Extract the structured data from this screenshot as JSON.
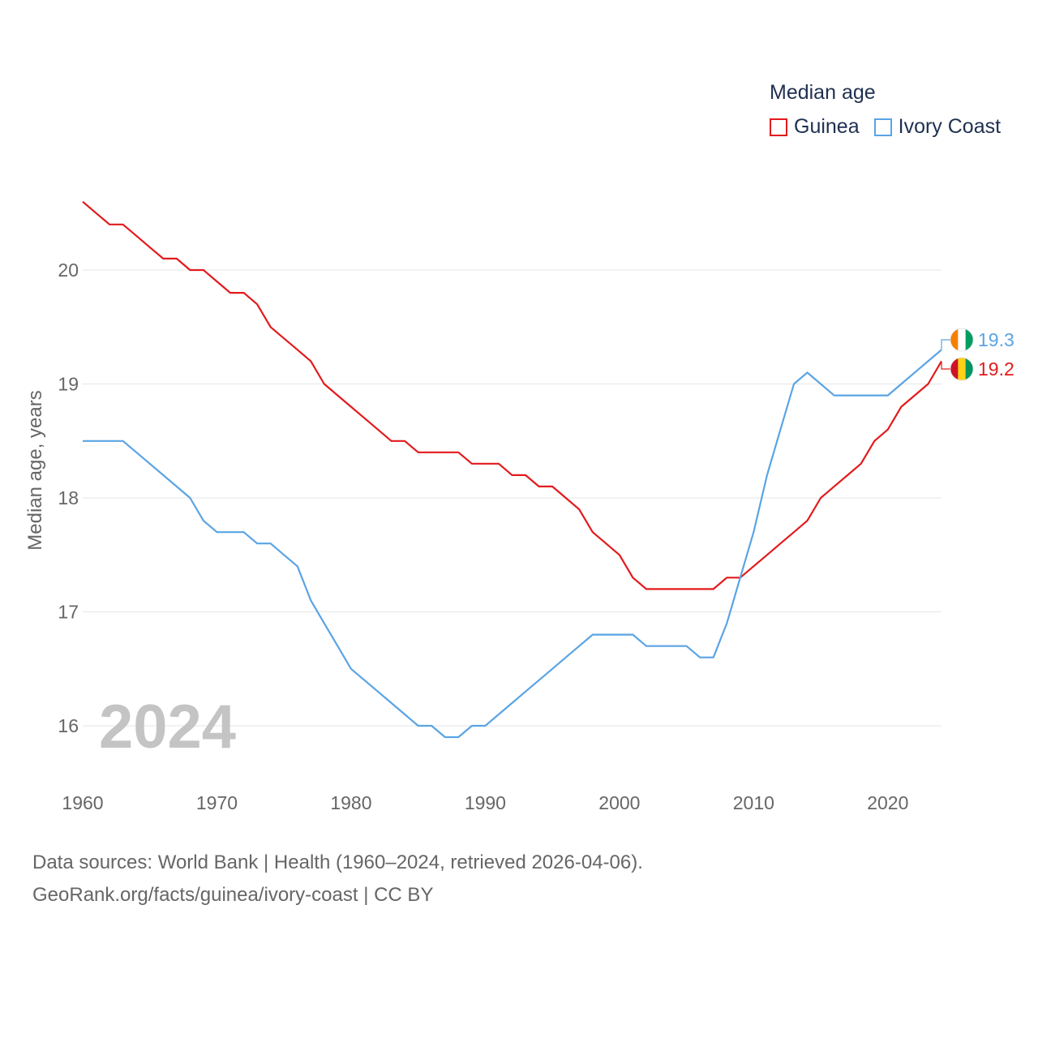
{
  "chart_data": {
    "type": "line",
    "legend_title": "Median age",
    "ylabel": "Median age, years",
    "xlabel": "",
    "xlim": [
      1960,
      2024
    ],
    "ylim": [
      15.6,
      20.8
    ],
    "x_ticks": [
      1960,
      1970,
      1980,
      1990,
      2000,
      2010,
      2020
    ],
    "y_ticks": [
      16,
      17,
      18,
      19,
      20
    ],
    "year_label": "2024",
    "x": [
      1960,
      1961,
      1962,
      1963,
      1964,
      1965,
      1966,
      1967,
      1968,
      1969,
      1970,
      1971,
      1972,
      1973,
      1974,
      1975,
      1976,
      1977,
      1978,
      1979,
      1980,
      1981,
      1982,
      1983,
      1984,
      1985,
      1986,
      1987,
      1988,
      1989,
      1990,
      1991,
      1992,
      1993,
      1994,
      1995,
      1996,
      1997,
      1998,
      1999,
      2000,
      2001,
      2002,
      2003,
      2004,
      2005,
      2006,
      2007,
      2008,
      2009,
      2010,
      2011,
      2012,
      2013,
      2014,
      2015,
      2016,
      2017,
      2018,
      2019,
      2020,
      2021,
      2022,
      2023,
      2024
    ],
    "series": [
      {
        "name": "Guinea",
        "color": "#e31a1c",
        "end_label": "19.2",
        "values": [
          20.6,
          20.5,
          20.4,
          20.4,
          20.3,
          20.2,
          20.1,
          20.1,
          20.0,
          20.0,
          19.9,
          19.8,
          19.8,
          19.7,
          19.5,
          19.4,
          19.3,
          19.2,
          19.0,
          18.9,
          18.8,
          18.7,
          18.6,
          18.5,
          18.5,
          18.4,
          18.4,
          18.4,
          18.4,
          18.3,
          18.3,
          18.3,
          18.2,
          18.2,
          18.1,
          18.1,
          18.0,
          17.9,
          17.7,
          17.6,
          17.5,
          17.3,
          17.2,
          17.2,
          17.2,
          17.2,
          17.2,
          17.2,
          17.3,
          17.3,
          17.4,
          17.5,
          17.6,
          17.7,
          17.8,
          18.0,
          18.1,
          18.2,
          18.3,
          18.5,
          18.6,
          18.8,
          18.9,
          19.0,
          19.2
        ]
      },
      {
        "name": "Ivory Coast",
        "color": "#5aa4e4",
        "end_label": "19.3",
        "values": [
          18.5,
          18.5,
          18.5,
          18.5,
          18.4,
          18.3,
          18.2,
          18.1,
          18.0,
          17.8,
          17.7,
          17.7,
          17.7,
          17.6,
          17.6,
          17.5,
          17.4,
          17.1,
          16.9,
          16.7,
          16.5,
          16.4,
          16.3,
          16.2,
          16.1,
          16.0,
          16.0,
          15.9,
          15.9,
          16.0,
          16.0,
          16.1,
          16.2,
          16.3,
          16.4,
          16.5,
          16.6,
          16.7,
          16.8,
          16.8,
          16.8,
          16.8,
          16.7,
          16.7,
          16.7,
          16.7,
          16.6,
          16.6,
          16.9,
          17.3,
          17.7,
          18.2,
          18.6,
          19.0,
          19.1,
          19.0,
          18.9,
          18.9,
          18.9,
          18.9,
          18.9,
          19.0,
          19.1,
          19.2,
          19.3
        ]
      }
    ]
  },
  "footer": {
    "line1": "Data sources: World Bank | Health (1960–2024, retrieved 2026-04-06).",
    "line2": "GeoRank.org/facts/guinea/ivory-coast | CC BY"
  }
}
